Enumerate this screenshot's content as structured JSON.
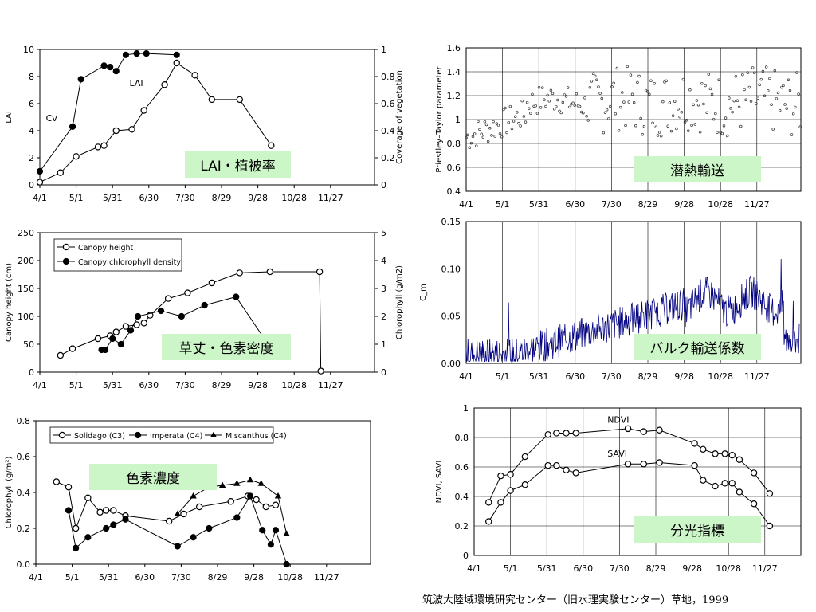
{
  "footer": "筑波大陸域環境研究センター（旧水理実験センター）草地，1999",
  "chart_data": [
    {
      "id": "p1",
      "type": "line",
      "labelbox": "LAI・植被率",
      "xticks": [
        "4/1",
        "5/1",
        "5/31",
        "6/30",
        "7/30",
        "8/29",
        "9/28",
        "10/28",
        "11/27"
      ],
      "ylabel": "LAI",
      "ylim": [
        0,
        10
      ],
      "yticks": [
        "0",
        "2",
        "4",
        "6",
        "8",
        "10"
      ],
      "y2label": "Coverage of vegetation",
      "y2lim": [
        0,
        1
      ],
      "y2ticks": [
        "0",
        "0.2",
        "0.4",
        "0.6",
        "0.8",
        "1"
      ],
      "annotations": [
        {
          "text": "Cv",
          "x": 5,
          "y": 4.7
        },
        {
          "text": "LAI",
          "x": 74,
          "y": 7.3
        }
      ],
      "series": [
        {
          "axis": "y2",
          "marker": "filled-circle",
          "x": [
            0,
            27,
            34,
            53,
            58,
            63,
            71,
            80,
            88,
            113
          ],
          "y": [
            0.1,
            0.43,
            0.78,
            0.88,
            0.87,
            0.84,
            0.96,
            0.97,
            0.97,
            0.96
          ]
        },
        {
          "axis": "y",
          "marker": "open-circle",
          "x": [
            0,
            17,
            30,
            48,
            53,
            63,
            76,
            86,
            103,
            113,
            128,
            142,
            165,
            191
          ],
          "y": [
            0.2,
            0.9,
            2.1,
            2.8,
            2.9,
            4.0,
            4.1,
            5.5,
            7.4,
            9.0,
            8.1,
            6.3,
            6.3,
            2.9
          ]
        }
      ]
    },
    {
      "id": "p2",
      "type": "scatter",
      "labelbox": "潜熱輸送",
      "xticks": [
        "4/1",
        "5/1",
        "5/31",
        "6/30",
        "7/30",
        "8/29",
        "9/28",
        "10/28",
        "11/27"
      ],
      "ylabel": "Priestley–Taylor parameter",
      "ylim": [
        0.4,
        1.6
      ],
      "yticks": [
        "0.4",
        "0.6",
        "0.8",
        "1",
        "1.2",
        "1.4",
        "1.6"
      ]
    },
    {
      "id": "p3",
      "type": "line",
      "labelbox": "草丈・色素密度",
      "xticks": [
        "4/1",
        "5/1",
        "5/31",
        "6/30",
        "7/30",
        "8/29",
        "9/28",
        "10/28",
        "11/27"
      ],
      "ylabel": "Canopy height (cm)",
      "ylim": [
        0,
        250
      ],
      "yticks": [
        "0",
        "50",
        "100",
        "150",
        "200",
        "250"
      ],
      "y2label": "Chlorophyll (g/m2)",
      "y2lim": [
        0,
        5
      ],
      "y2ticks": [
        "0",
        "1",
        "2",
        "3",
        "4",
        "5"
      ],
      "legend": [
        "Canopy height",
        "Canopy chlorophyll density"
      ],
      "series": [
        {
          "name": "Canopy height",
          "axis": "y",
          "marker": "open-circle",
          "x": [
            17,
            27,
            48,
            58,
            63,
            71,
            80,
            86,
            91,
            106,
            122,
            142,
            165,
            190,
            231,
            232
          ],
          "y": [
            30,
            42,
            60,
            65,
            72,
            82,
            85,
            88,
            102,
            132,
            142,
            160,
            178,
            180,
            180,
            2
          ]
        },
        {
          "name": "Canopy chlorophyll density",
          "axis": "y2",
          "marker": "filled-circle",
          "x": [
            51,
            54,
            60,
            67,
            75,
            81,
            100,
            117,
            136,
            162,
            190
          ],
          "y": [
            0.8,
            0.8,
            1.2,
            1.0,
            1.5,
            2.0,
            2.2,
            2.0,
            2.4,
            2.7,
            0.9
          ]
        }
      ]
    },
    {
      "id": "p4",
      "type": "line",
      "labelbox": "バルク輸送係数",
      "xticks": [
        "4/1",
        "5/1",
        "5/31",
        "6/30",
        "7/30",
        "8/29",
        "9/28",
        "10/28",
        "11/27"
      ],
      "ylabel": "C_m",
      "ylim": [
        0,
        0.15
      ],
      "yticks": [
        "0.00",
        "0.05",
        "0.10",
        "0.15"
      ]
    },
    {
      "id": "p5",
      "type": "line",
      "labelbox": "色素濃度",
      "xticks": [
        "4/1",
        "5/1",
        "5/31",
        "6/30",
        "7/30",
        "8/29",
        "9/28",
        "10/28",
        "11/27"
      ],
      "ylabel": "Chlorophyll (g/m²)",
      "ylim": [
        0,
        0.8
      ],
      "yticks": [
        "0.0",
        "0.2",
        "0.4",
        "0.6",
        "0.8"
      ],
      "legend": [
        "Solidago (C3)",
        "Imperata (C4)",
        "Miscanthus (C4)"
      ],
      "series": [
        {
          "name": "Solidago (C3)",
          "marker": "open-circle",
          "x": [
            17,
            27,
            33,
            43,
            53,
            58,
            64,
            74,
            110,
            122,
            135,
            161,
            175,
            182,
            190,
            198
          ],
          "y": [
            0.46,
            0.43,
            0.2,
            0.37,
            0.29,
            0.3,
            0.3,
            0.27,
            0.24,
            0.28,
            0.32,
            0.35,
            0.38,
            0.36,
            0.32,
            0.33
          ]
        },
        {
          "name": "Imperata (C4)",
          "marker": "filled-circle",
          "x": [
            27,
            33,
            43,
            58,
            64,
            74,
            117,
            130,
            143,
            166,
            177,
            187,
            194,
            198,
            207
          ],
          "y": [
            0.3,
            0.09,
            0.15,
            0.2,
            0.22,
            0.25,
            0.1,
            0.15,
            0.2,
            0.26,
            0.38,
            0.19,
            0.11,
            0.19,
            0.0
          ]
        },
        {
          "name": "Miscanthus (C4)",
          "marker": "filled-triangle",
          "x": [
            117,
            130,
            143,
            154,
            166,
            177,
            186,
            200,
            207
          ],
          "y": [
            0.28,
            0.38,
            0.43,
            0.44,
            0.45,
            0.47,
            0.45,
            0.38,
            0.17
          ]
        }
      ]
    },
    {
      "id": "p6",
      "type": "line",
      "labelbox": "分光指標",
      "xticks": [
        "4/1",
        "5/1",
        "5/31",
        "6/30",
        "7/30",
        "8/29",
        "9/28",
        "10/28",
        "11/27"
      ],
      "ylabel": "NDVI, SAVI",
      "ylim": [
        0,
        1
      ],
      "yticks": [
        "0",
        "0.2",
        "0.4",
        "0.6",
        "0.8",
        "1"
      ],
      "annotations": [
        {
          "text": "NDVI",
          "x": 110,
          "y": 0.9
        },
        {
          "text": "SAVI",
          "x": 110,
          "y": 0.67
        }
      ],
      "series": [
        {
          "name": "NDVI",
          "marker": "open-circle",
          "x": [
            12,
            22,
            30,
            42,
            61,
            68,
            76,
            84,
            127,
            127,
            140,
            140,
            153,
            182,
            189,
            199,
            207,
            213,
            219,
            231,
            244
          ],
          "y": [
            0.36,
            0.54,
            0.55,
            0.67,
            0.82,
            0.83,
            0.83,
            0.83,
            0.86,
            0.86,
            0.84,
            0.84,
            0.85,
            0.76,
            0.72,
            0.69,
            0.69,
            0.68,
            0.65,
            0.56,
            0.42
          ]
        },
        {
          "name": "SAVI",
          "marker": "open-circle",
          "x": [
            12,
            22,
            30,
            42,
            61,
            68,
            76,
            84,
            127,
            127,
            140,
            140,
            153,
            182,
            189,
            199,
            207,
            213,
            219,
            231,
            244
          ],
          "y": [
            0.23,
            0.36,
            0.44,
            0.48,
            0.61,
            0.61,
            0.58,
            0.56,
            0.62,
            0.62,
            0.62,
            0.62,
            0.63,
            0.61,
            0.51,
            0.47,
            0.49,
            0.49,
            0.43,
            0.35,
            0.2
          ]
        }
      ]
    }
  ]
}
